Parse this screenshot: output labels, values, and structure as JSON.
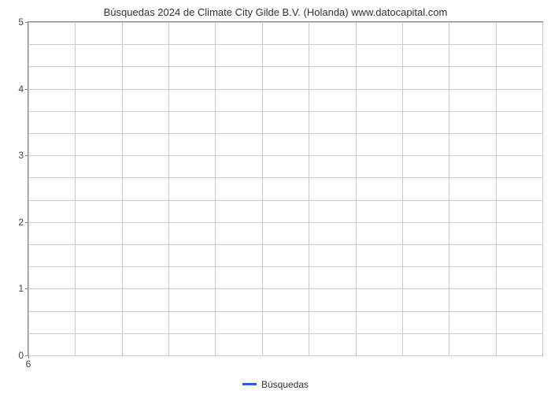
{
  "chart": {
    "type": "line",
    "title": "Búsquedas 2024 de Climate City Gilde B.V. (Holanda) www.datocapital.com",
    "title_fontsize": 13,
    "background_color": "#ffffff",
    "plot_border_color": "#888888",
    "grid_color": "#cccccc",
    "grid_on": true,
    "y_axis": {
      "min": 0,
      "max": 5,
      "major_ticks": [
        0,
        1,
        2,
        3,
        4,
        5
      ],
      "minor_lines_between": 2,
      "label_fontsize": 12,
      "label_color": "#444444"
    },
    "x_axis": {
      "tick_labels": [
        "6"
      ],
      "tick_positions_pct": [
        0
      ],
      "vertical_gridlines_pct": [
        0,
        9.09,
        18.18,
        27.27,
        36.36,
        45.45,
        54.54,
        63.63,
        72.72,
        81.81,
        90.9,
        100
      ],
      "label_fontsize": 12,
      "label_color": "#444444"
    },
    "series": [
      {
        "name": "Búsquedas",
        "color": "#2b5fd9",
        "line_width": 3,
        "data": []
      }
    ],
    "legend": {
      "position": "bottom-center",
      "items": [
        {
          "label": "Búsquedas",
          "color": "#2b5fd9"
        }
      ]
    }
  }
}
